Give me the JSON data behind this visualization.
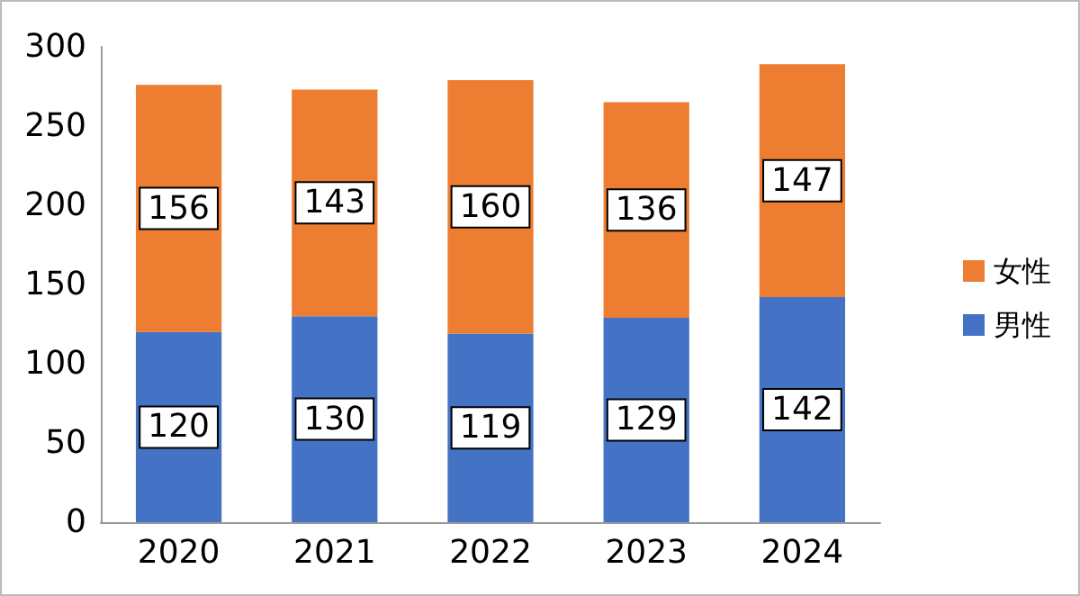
{
  "chart_data": {
    "type": "bar",
    "stacked": true,
    "categories": [
      "2020",
      "2021",
      "2022",
      "2023",
      "2024"
    ],
    "series": [
      {
        "name": "男性",
        "color": "#4472c4",
        "values": [
          120,
          130,
          119,
          129,
          142
        ]
      },
      {
        "name": "女性",
        "color": "#ed7d31",
        "values": [
          156,
          143,
          160,
          136,
          147
        ]
      }
    ],
    "ylim": [
      0,
      300
    ],
    "yticks": [
      0,
      50,
      100,
      150,
      200,
      250,
      300
    ],
    "grid": false,
    "legend": "right",
    "data_labels": true
  }
}
